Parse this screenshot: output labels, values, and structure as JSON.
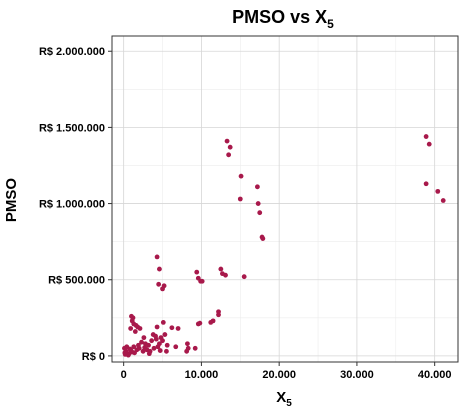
{
  "chart_data": {
    "type": "scatter",
    "title": "PMSO vs X",
    "title_subscript": "5",
    "xlabel": "X",
    "xlabel_subscript": "5",
    "ylabel": "PMSO",
    "xlim": [
      -1500,
      43000
    ],
    "ylim": [
      -40000,
      2100000
    ],
    "x_ticks": [
      {
        "value": 0,
        "label": "0"
      },
      {
        "value": 10000,
        "label": "10.000"
      },
      {
        "value": 20000,
        "label": "20.000"
      },
      {
        "value": 30000,
        "label": "30.000"
      },
      {
        "value": 40000,
        "label": "40.000"
      }
    ],
    "y_ticks": [
      {
        "value": 0,
        "label": "R$ 0"
      },
      {
        "value": 500000,
        "label": "R$ 500.000"
      },
      {
        "value": 1000000,
        "label": "R$ 1.000.000"
      },
      {
        "value": 1500000,
        "label": "R$ 1.500.000"
      },
      {
        "value": 2000000,
        "label": "R$ 2.000.000"
      }
    ],
    "grid": true,
    "point_color": "#a8194b",
    "points": [
      {
        "x": 38900,
        "y": 1440000
      },
      {
        "x": 39300,
        "y": 1390000
      },
      {
        "x": 38900,
        "y": 1130000
      },
      {
        "x": 40400,
        "y": 1080000
      },
      {
        "x": 41100,
        "y": 1020000
      },
      {
        "x": 13300,
        "y": 1410000
      },
      {
        "x": 13700,
        "y": 1370000
      },
      {
        "x": 13500,
        "y": 1320000
      },
      {
        "x": 15100,
        "y": 1180000
      },
      {
        "x": 17200,
        "y": 1110000
      },
      {
        "x": 15000,
        "y": 1030000
      },
      {
        "x": 17300,
        "y": 1000000
      },
      {
        "x": 17500,
        "y": 940000
      },
      {
        "x": 17800,
        "y": 780000
      },
      {
        "x": 17900,
        "y": 770000
      },
      {
        "x": 4300,
        "y": 650000
      },
      {
        "x": 4600,
        "y": 570000
      },
      {
        "x": 4500,
        "y": 470000
      },
      {
        "x": 5200,
        "y": 460000
      },
      {
        "x": 5000,
        "y": 440000
      },
      {
        "x": 9400,
        "y": 550000
      },
      {
        "x": 9600,
        "y": 510000
      },
      {
        "x": 9900,
        "y": 490000
      },
      {
        "x": 10100,
        "y": 490000
      },
      {
        "x": 12500,
        "y": 570000
      },
      {
        "x": 12700,
        "y": 540000
      },
      {
        "x": 13100,
        "y": 530000
      },
      {
        "x": 15500,
        "y": 520000
      },
      {
        "x": 12200,
        "y": 290000
      },
      {
        "x": 12200,
        "y": 270000
      },
      {
        "x": 11500,
        "y": 230000
      },
      {
        "x": 11200,
        "y": 220000
      },
      {
        "x": 9800,
        "y": 215000
      },
      {
        "x": 9600,
        "y": 210000
      },
      {
        "x": 7000,
        "y": 180000
      },
      {
        "x": 6200,
        "y": 185000
      },
      {
        "x": 5100,
        "y": 220000
      },
      {
        "x": 4300,
        "y": 190000
      },
      {
        "x": 8200,
        "y": 80000
      },
      {
        "x": 8300,
        "y": 50000
      },
      {
        "x": 8100,
        "y": 30000
      },
      {
        "x": 9200,
        "y": 50000
      },
      {
        "x": 6700,
        "y": 60000
      },
      {
        "x": 5500,
        "y": 30000
      },
      {
        "x": 1000,
        "y": 260000
      },
      {
        "x": 1200,
        "y": 250000
      },
      {
        "x": 1100,
        "y": 230000
      },
      {
        "x": 1600,
        "y": 200000
      },
      {
        "x": 1800,
        "y": 190000
      },
      {
        "x": 1300,
        "y": 210000
      },
      {
        "x": 2100,
        "y": 180000
      },
      {
        "x": 900,
        "y": 180000
      },
      {
        "x": 1500,
        "y": 160000
      },
      {
        "x": 2800,
        "y": 80000
      },
      {
        "x": 3200,
        "y": 70000
      },
      {
        "x": 3600,
        "y": 100000
      },
      {
        "x": 4200,
        "y": 110000
      },
      {
        "x": 4800,
        "y": 120000
      },
      {
        "x": 4600,
        "y": 80000
      },
      {
        "x": 4400,
        "y": 60000
      },
      {
        "x": 3900,
        "y": 50000
      },
      {
        "x": 3000,
        "y": 40000
      },
      {
        "x": 2500,
        "y": 30000
      },
      {
        "x": 2000,
        "y": 50000
      },
      {
        "x": 1700,
        "y": 40000
      },
      {
        "x": 1400,
        "y": 20000
      },
      {
        "x": 1100,
        "y": 25000
      },
      {
        "x": 700,
        "y": 15000
      },
      {
        "x": 300,
        "y": 30000
      },
      {
        "x": 200,
        "y": 10000
      },
      {
        "x": 100,
        "y": 50000
      },
      {
        "x": 400,
        "y": 60000
      },
      {
        "x": 800,
        "y": 45000
      },
      {
        "x": 1900,
        "y": 70000
      },
      {
        "x": 2300,
        "y": 90000
      },
      {
        "x": 3400,
        "y": 30000
      },
      {
        "x": 5000,
        "y": 100000
      },
      {
        "x": 5300,
        "y": 140000
      },
      {
        "x": 3800,
        "y": 140000
      },
      {
        "x": 2600,
        "y": 120000
      },
      {
        "x": 4100,
        "y": 130000
      },
      {
        "x": 600,
        "y": 5000
      },
      {
        "x": 1300,
        "y": 60000
      },
      {
        "x": 2700,
        "y": 55000
      },
      {
        "x": 3300,
        "y": 15000
      },
      {
        "x": 4700,
        "y": 35000
      },
      {
        "x": 5600,
        "y": 70000
      },
      {
        "x": 150,
        "y": 20000
      },
      {
        "x": 950,
        "y": 35000
      }
    ]
  }
}
